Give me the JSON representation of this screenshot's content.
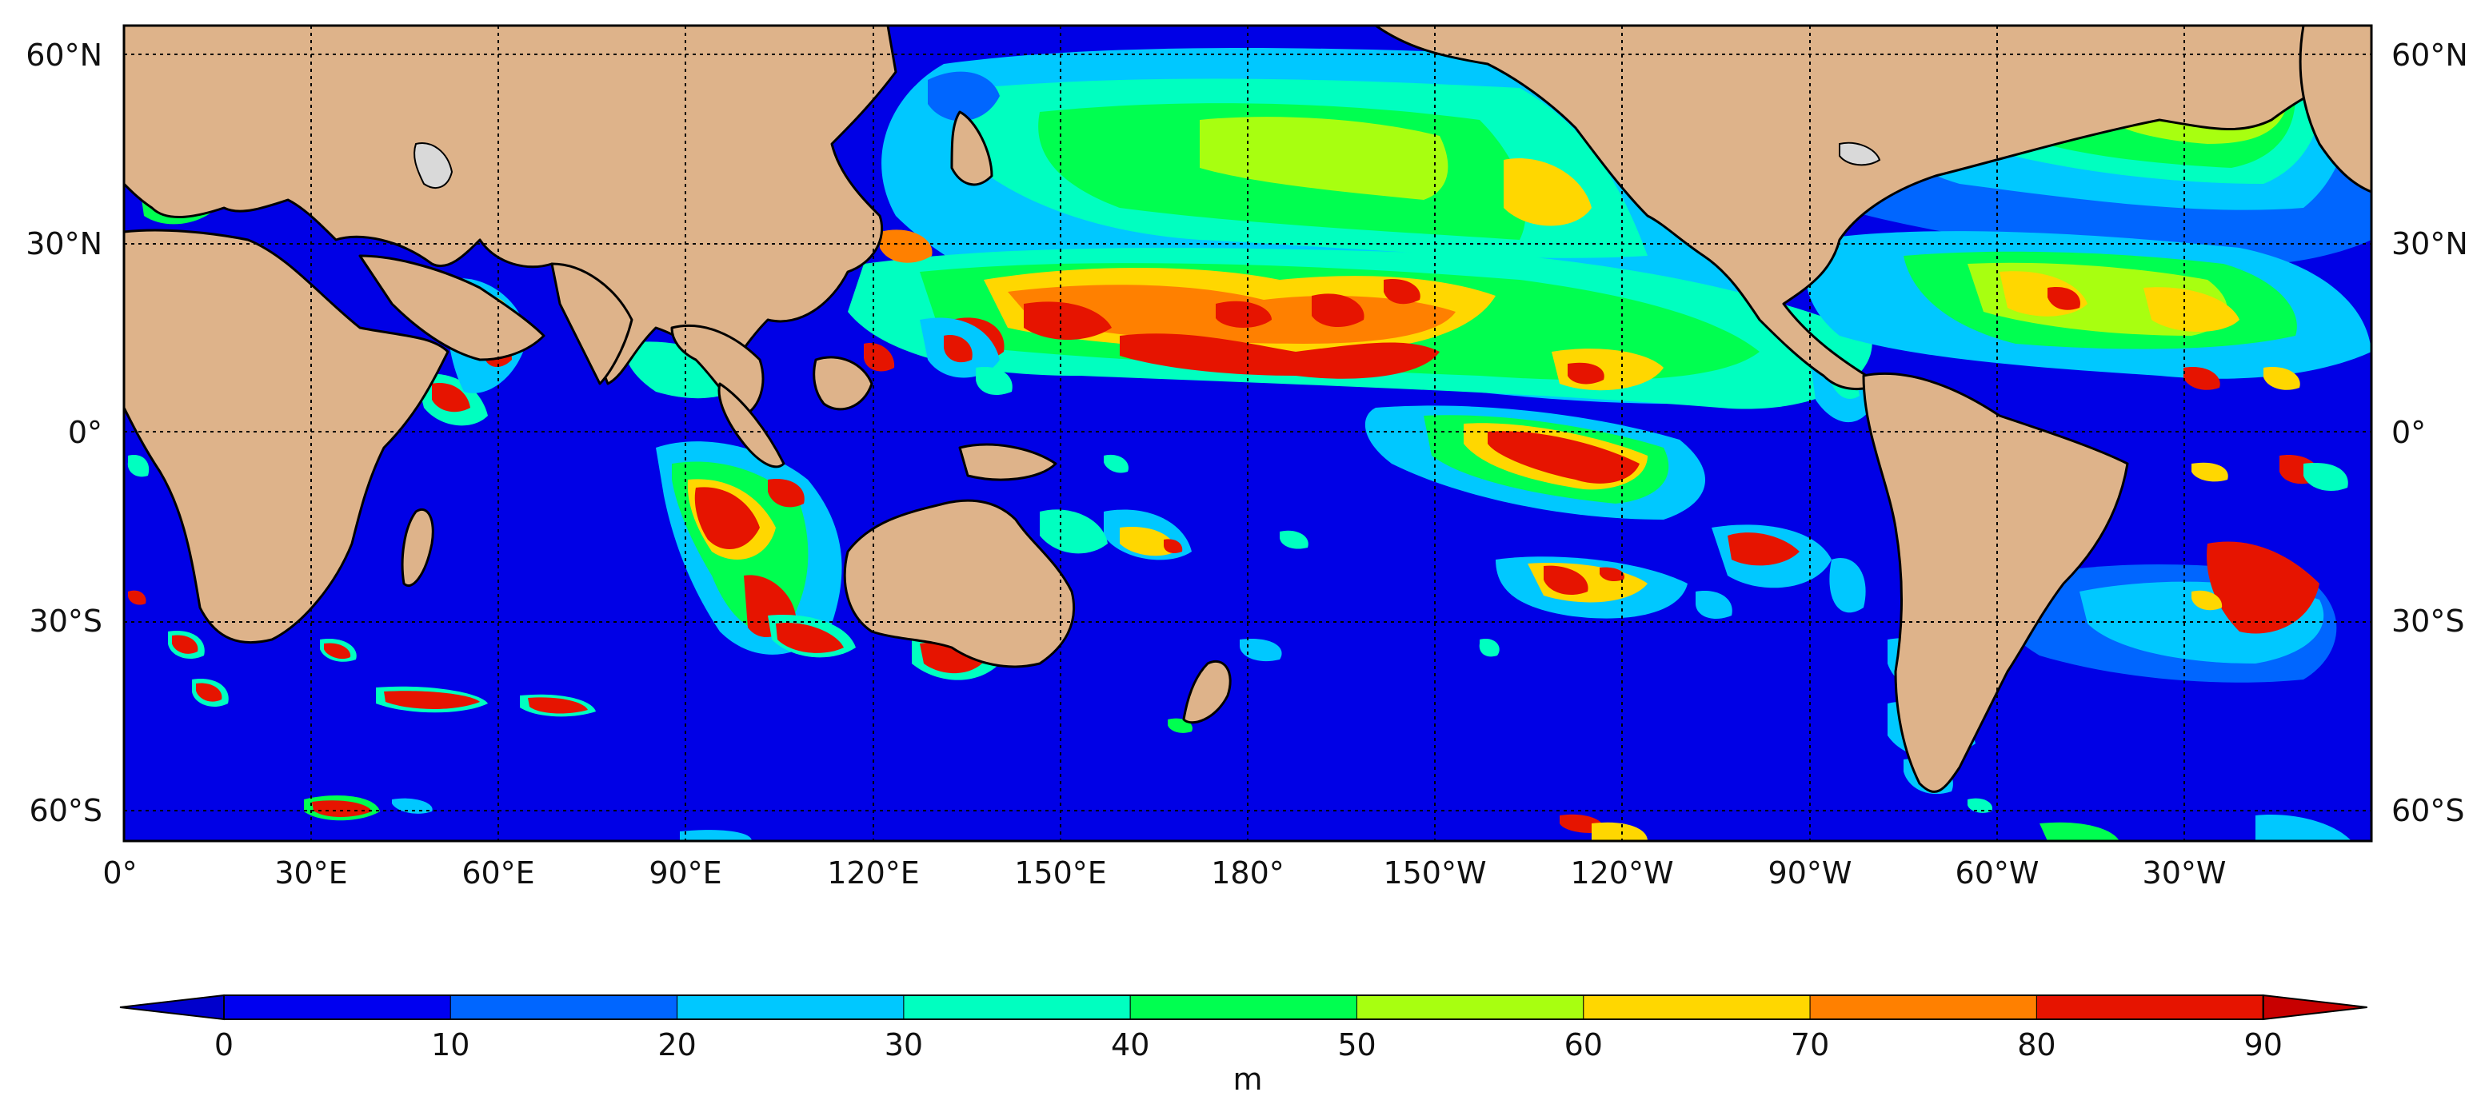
{
  "map": {
    "lat_labels_left": [
      "60°N",
      "30°N",
      "0°",
      "30°S",
      "60°S"
    ],
    "lat_labels_right": [
      "60°N",
      "30°N",
      "0°",
      "30°S",
      "60°S"
    ],
    "lon_labels": [
      "0°",
      "30°E",
      "60°E",
      "90°E",
      "120°E",
      "150°E",
      "180°",
      "150°W",
      "120°W",
      "90°W",
      "60°W",
      "30°W"
    ],
    "colors": {
      "ocean_base": "#0000e6",
      "land": "#deb38a",
      "lake": "#d9d9d9",
      "grid": "#000000"
    }
  },
  "colorbar": {
    "ticks": [
      "0",
      "10",
      "20",
      "30",
      "40",
      "50",
      "60",
      "70",
      "80",
      "90"
    ],
    "unit": "m",
    "bins": [
      {
        "range": "<0",
        "color": "#0000cc"
      },
      {
        "range": "0-10",
        "color": "#0000f0"
      },
      {
        "range": "10-20",
        "color": "#0066ff"
      },
      {
        "range": "20-30",
        "color": "#00c8ff"
      },
      {
        "range": "30-40",
        "color": "#00ffc0"
      },
      {
        "range": "40-50",
        "color": "#00ff50"
      },
      {
        "range": "50-60",
        "color": "#a8ff10"
      },
      {
        "range": "60-70",
        "color": "#ffd700"
      },
      {
        "range": "70-80",
        "color": "#ff8000"
      },
      {
        "range": "80-90",
        "color": "#e61400"
      },
      {
        "range": ">90",
        "color": "#c80000"
      }
    ]
  }
}
